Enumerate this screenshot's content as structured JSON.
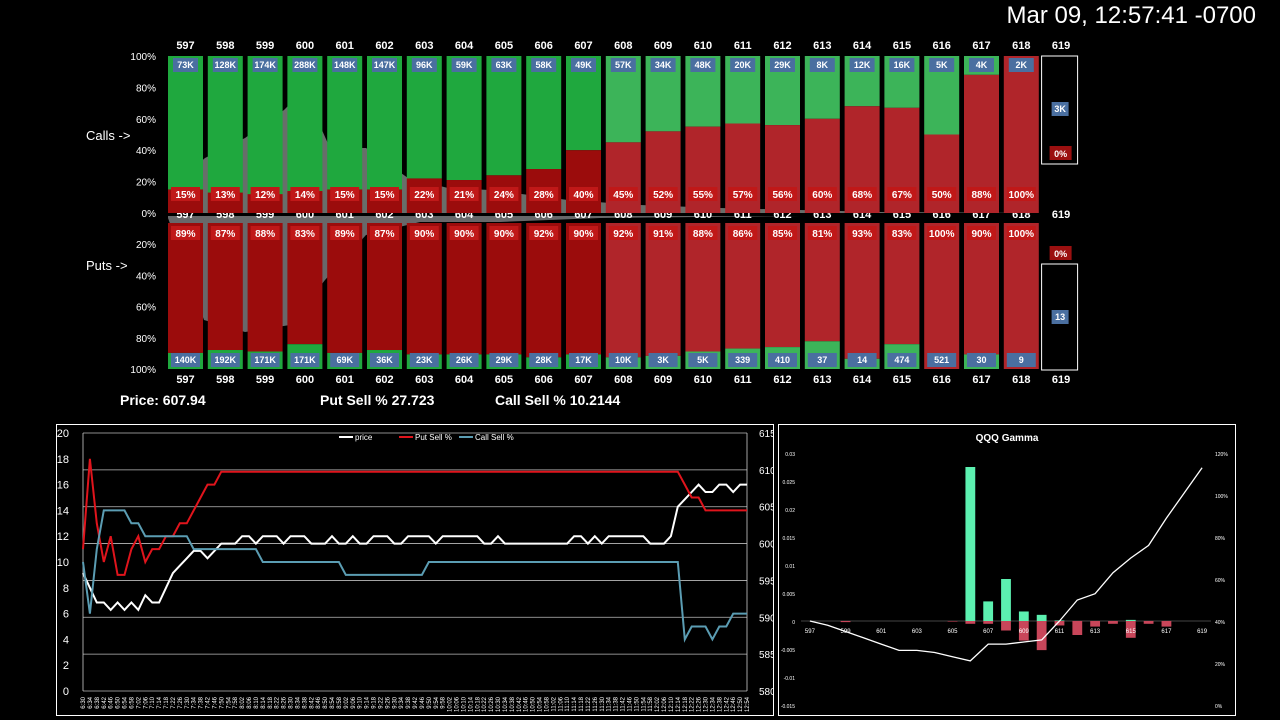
{
  "timestamp": "Mar 09, 12:57:41 -0700",
  "stats": {
    "price": "Price: 607.94",
    "put_sell": "Put Sell % 27.723",
    "call_sell": "Call Sell % 10.2144"
  },
  "colors": {
    "green": "#1fa83e",
    "dark_red": "#9b0c0c",
    "red": "#b0252a",
    "badge_blue": "#4a6fa0",
    "badge_red": "#9b1010",
    "price_line": "#ffffff",
    "put_line": "#e0141c",
    "call_line": "#5b9db3",
    "gamma_pos": "#5cf0b0",
    "gamma_neg": "#c8465a"
  },
  "chart_data": [
    {
      "type": "bar",
      "id": "calls_puts",
      "row_labels": {
        "calls": "Calls ->",
        "puts": "Puts ->"
      },
      "strikes": [
        "597",
        "598",
        "599",
        "600",
        "601",
        "602",
        "603",
        "604",
        "605",
        "606",
        "607",
        "608",
        "609",
        "610",
        "611",
        "612",
        "613",
        "614",
        "615",
        "616",
        "617",
        "618",
        "619"
      ],
      "y_ticks_calls": [
        "100%",
        "80%",
        "60%",
        "40%",
        "20%",
        "0%"
      ],
      "y_ticks_puts": [
        "0%",
        "20%",
        "40%",
        "60%",
        "80%",
        "100%"
      ],
      "calls": {
        "volume": [
          "73K",
          "128K",
          "174K",
          "288K",
          "148K",
          "147K",
          "96K",
          "59K",
          "63K",
          "58K",
          "49K",
          "57K",
          "34K",
          "48K",
          "20K",
          "29K",
          "8K",
          "12K",
          "16K",
          "5K",
          "4K",
          "2K",
          "3K"
        ],
        "sell_pct": [
          "15%",
          "13%",
          "12%",
          "14%",
          "15%",
          "15%",
          "22%",
          "21%",
          "24%",
          "28%",
          "40%",
          "45%",
          "52%",
          "55%",
          "57%",
          "56%",
          "60%",
          "68%",
          "67%",
          "50%",
          "88%",
          "100%",
          "0%"
        ]
      },
      "puts": {
        "volume": [
          "140K",
          "192K",
          "171K",
          "171K",
          "69K",
          "36K",
          "23K",
          "26K",
          "29K",
          "28K",
          "17K",
          "10K",
          "3K",
          "5K",
          "339",
          "410",
          "37",
          "14",
          "474",
          "521",
          "30",
          "9",
          "13"
        ],
        "sell_pct": [
          "89%",
          "87%",
          "88%",
          "83%",
          "89%",
          "87%",
          "90%",
          "90%",
          "90%",
          "92%",
          "90%",
          "92%",
          "91%",
          "88%",
          "86%",
          "85%",
          "81%",
          "93%",
          "83%",
          "100%",
          "90%",
          "100%",
          "0%"
        ]
      }
    },
    {
      "type": "line",
      "id": "sell_pct_history",
      "legend": [
        "price",
        "Put Sell %",
        "Call Sell %"
      ],
      "y_left_ticks": [
        "20",
        "18",
        "16",
        "14",
        "12",
        "10",
        "8",
        "6",
        "4",
        "2",
        "0"
      ],
      "y_right_ticks": [
        "615",
        "610",
        "605",
        "600",
        "595",
        "590",
        "585",
        "580"
      ],
      "ylim_left": [
        0,
        20
      ],
      "ylim_right": [
        580,
        615
      ],
      "x_ticks": [
        "6:30",
        "6:34",
        "6:38",
        "6:42",
        "6:46",
        "6:50",
        "6:54",
        "6:58",
        "7:02",
        "7:06",
        "7:10",
        "7:14",
        "7:18",
        "7:22",
        "7:26",
        "7:30",
        "7:34",
        "7:38",
        "7:42",
        "7:46",
        "7:50",
        "7:54",
        "7:58",
        "8:02",
        "8:06",
        "8:10",
        "8:14",
        "8:18",
        "8:22",
        "8:26",
        "8:30",
        "8:34",
        "8:38",
        "8:42",
        "8:46",
        "8:50",
        "8:54",
        "8:58",
        "9:02",
        "9:06",
        "9:10",
        "9:14",
        "9:18",
        "9:22",
        "9:26",
        "9:30",
        "9:34",
        "9:38",
        "9:42",
        "9:46",
        "9:50",
        "9:54",
        "9:58",
        "10:02",
        "10:06",
        "10:10",
        "10:14",
        "10:18",
        "10:22",
        "10:26",
        "10:30",
        "10:34",
        "10:38",
        "10:42",
        "10:46",
        "10:50",
        "10:54",
        "10:58",
        "11:02",
        "11:06",
        "11:10",
        "11:14",
        "11:18",
        "11:22",
        "11:26",
        "11:30",
        "11:34",
        "11:38",
        "11:42",
        "11:46",
        "11:50",
        "11:54",
        "11:58",
        "12:02",
        "12:06",
        "12:10",
        "12:14",
        "12:18",
        "12:22",
        "12:26",
        "12:30",
        "12:34",
        "12:38",
        "12:42",
        "12:46",
        "12:50",
        "12:54"
      ],
      "series": [
        {
          "name": "price",
          "axis": "right",
          "values": [
            596,
            594,
            592,
            592,
            591,
            592,
            591,
            592,
            591,
            593,
            592,
            592,
            594,
            596,
            597,
            598,
            599,
            599,
            598,
            599,
            600,
            600,
            600,
            601,
            601,
            600,
            601,
            601,
            601,
            600,
            601,
            601,
            601,
            600,
            600,
            600,
            601,
            600,
            600,
            601,
            600,
            600,
            601,
            601,
            601,
            600,
            600,
            601,
            601,
            601,
            601,
            600,
            601,
            601,
            601,
            601,
            601,
            601,
            600,
            600,
            601,
            600,
            600,
            600,
            600,
            600,
            600,
            600,
            600,
            600,
            600,
            601,
            601,
            600,
            601,
            600,
            601,
            601,
            601,
            601,
            601,
            601,
            600,
            600,
            600,
            601,
            605,
            606,
            607,
            608,
            607,
            607,
            608,
            608,
            607,
            608,
            608
          ]
        },
        {
          "name": "Put Sell %",
          "axis": "left",
          "values": [
            11,
            18,
            13,
            10,
            12,
            9,
            9,
            11,
            12,
            10,
            11,
            11,
            12,
            12,
            13,
            13,
            14,
            15,
            16,
            16,
            17,
            17,
            17,
            17,
            17,
            17,
            17,
            17,
            17,
            17,
            17,
            17,
            17,
            17,
            17,
            17,
            17,
            17,
            17,
            17,
            17,
            17,
            17,
            17,
            17,
            17,
            17,
            17,
            17,
            17,
            17,
            17,
            17,
            17,
            17,
            17,
            17,
            17,
            17,
            17,
            17,
            17,
            17,
            17,
            17,
            17,
            17,
            17,
            17,
            17,
            17,
            17,
            17,
            17,
            17,
            17,
            17,
            17,
            17,
            17,
            17,
            17,
            17,
            17,
            17,
            17,
            17,
            16,
            15,
            15,
            14,
            14,
            14,
            14,
            14,
            14,
            14
          ]
        },
        {
          "name": "Call Sell %",
          "axis": "left",
          "values": [
            10,
            6,
            11,
            14,
            14,
            14,
            14,
            13,
            13,
            12,
            12,
            12,
            12,
            12,
            12,
            12,
            11,
            11,
            11,
            11,
            11,
            11,
            11,
            11,
            11,
            11,
            10,
            10,
            10,
            10,
            10,
            10,
            10,
            10,
            10,
            10,
            10,
            10,
            9,
            9,
            9,
            9,
            9,
            9,
            9,
            9,
            9,
            9,
            9,
            9,
            10,
            10,
            10,
            10,
            10,
            10,
            10,
            10,
            10,
            10,
            10,
            10,
            10,
            10,
            10,
            10,
            10,
            10,
            10,
            10,
            10,
            10,
            10,
            10,
            10,
            10,
            10,
            10,
            10,
            10,
            10,
            10,
            10,
            10,
            10,
            10,
            10,
            4,
            5,
            5,
            5,
            4,
            5,
            5,
            6,
            6,
            6
          ]
        }
      ]
    },
    {
      "type": "bar",
      "id": "qqq_gamma",
      "title": "QQQ Gamma",
      "categories": [
        "597",
        "598",
        "599",
        "600",
        "601",
        "602",
        "603",
        "604",
        "605",
        "606",
        "607",
        "608",
        "609",
        "610",
        "611",
        "612",
        "613",
        "614",
        "615",
        "616",
        "617",
        "618",
        "619"
      ],
      "x_tick_labels": [
        "597",
        "599",
        "601",
        "603",
        "605",
        "607",
        "609",
        "611",
        "613",
        "615",
        "617",
        "619"
      ],
      "y_left_ticks": [
        "0.03",
        "0.025",
        "0.02",
        "0.015",
        "0.01",
        "0.005",
        "0",
        "-0.005",
        "-0.01",
        "-0.015"
      ],
      "y_right_ticks": [
        "120%",
        "100%",
        "80%",
        "60%",
        "40%",
        "20%",
        "0%"
      ],
      "ylim": [
        -0.015,
        0.03
      ],
      "series": [
        {
          "name": "positive",
          "values": [
            0,
            0,
            0,
            0,
            0,
            0,
            0,
            0,
            0,
            0.0275,
            0.0035,
            0.0075,
            0.0017,
            0.0011,
            0.0001,
            0,
            0,
            0,
            0.0002,
            0,
            0,
            0,
            0
          ]
        },
        {
          "name": "negative",
          "values": [
            0,
            0,
            -0.0002,
            0,
            0,
            0,
            0,
            0,
            -0.0001,
            -0.0005,
            -0.0005,
            -0.0017,
            -0.0035,
            -0.0052,
            -0.0008,
            -0.0025,
            -0.001,
            -0.0005,
            -0.003,
            -0.0005,
            -0.001,
            0,
            0
          ]
        },
        {
          "name": "cumulative",
          "axis": "right",
          "values": [
            0.4,
            0.38,
            0.35,
            0.32,
            0.29,
            0.26,
            0.26,
            0.25,
            0.23,
            0.21,
            0.29,
            0.29,
            0.3,
            0.31,
            0.4,
            0.5,
            0.53,
            0.63,
            0.7,
            0.76,
            0.89,
            1.01,
            1.13
          ]
        }
      ]
    }
  ]
}
